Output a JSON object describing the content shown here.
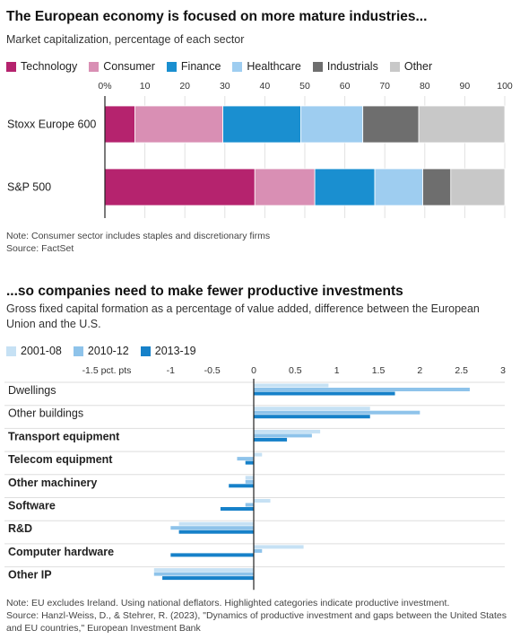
{
  "chart_data": [
    {
      "type": "bar",
      "orientation": "horizontal",
      "stacked": true,
      "title": "The European economy is focused on more mature industries...",
      "subtitle": "Market capitalization, percentage of each sector",
      "categories": [
        "Stoxx Europe 600",
        "S&P 500"
      ],
      "series": [
        {
          "name": "Technology",
          "color": "#b5236e",
          "values": [
            7.5,
            37.5
          ]
        },
        {
          "name": "Consumer",
          "color": "#d98fb4",
          "values": [
            22,
            15
          ]
        },
        {
          "name": "Finance",
          "color": "#1a8fd0",
          "values": [
            19.5,
            15
          ]
        },
        {
          "name": "Healthcare",
          "color": "#9ecdf0",
          "values": [
            15.5,
            12
          ]
        },
        {
          "name": "Industrials",
          "color": "#6e6e6e",
          "values": [
            14,
            7
          ]
        },
        {
          "name": "Other",
          "color": "#c8c8c8",
          "values": [
            21.5,
            13.5
          ]
        }
      ],
      "xlim": [
        0,
        100
      ],
      "ticks": [
        0,
        10,
        20,
        30,
        40,
        50,
        60,
        70,
        80,
        90,
        100
      ],
      "tick_labels": [
        "0%",
        "10",
        "20",
        "30",
        "40",
        "50",
        "60",
        "70",
        "80",
        "90",
        "100"
      ],
      "legend_position": "top-left",
      "note": "Note: Consumer sector includes staples and discretionary firms",
      "source": "Source: FactSet"
    },
    {
      "type": "bar",
      "orientation": "horizontal",
      "grouped": true,
      "title": "...so companies need to make fewer productive investments",
      "subtitle": "Gross fixed capital formation as a percentage of value added, difference between the European Union and the U.S.",
      "categories": [
        "Dwellings",
        "Other buildings",
        "Transport equipment",
        "Telecom equipment",
        "Other machinery",
        "Software",
        "R&D",
        "Computer hardware",
        "Other IP"
      ],
      "highlighted": [
        false,
        false,
        true,
        true,
        true,
        true,
        true,
        true,
        true
      ],
      "series": [
        {
          "name": "2001-08",
          "color": "#c6e1f4",
          "values": [
            0.9,
            1.4,
            0.8,
            0.1,
            -0.1,
            0.2,
            -0.9,
            0.6,
            -1.2
          ]
        },
        {
          "name": "2010-12",
          "color": "#8ec3ea",
          "values": [
            2.6,
            2.0,
            0.7,
            -0.2,
            -0.1,
            -0.1,
            -1.0,
            0.1,
            -1.2
          ]
        },
        {
          "name": "2013-19",
          "color": "#1681c9",
          "values": [
            1.7,
            1.4,
            0.4,
            -0.1,
            -0.3,
            -0.4,
            -0.9,
            -1.0,
            -1.1
          ]
        }
      ],
      "xlim": [
        -1.5,
        3
      ],
      "ticks": [
        -1.5,
        -1,
        -0.5,
        0,
        0.5,
        1,
        1.5,
        2,
        2.5,
        3
      ],
      "tick_labels": [
        "-1.5 pct. pts",
        "-1",
        "-0.5",
        "0",
        "0.5",
        "1",
        "1.5",
        "2",
        "2.5",
        "3"
      ],
      "legend_position": "top-left",
      "note": "Note: EU excludes Ireland. Using national deflators. Highlighted categories indicate productive investment.",
      "source": "Source: Hanzl-Weiss, D., & Stehrer, R. (2023), \"Dynamics of productive investment and gaps between the United States and EU countries,\" European Investment Bank"
    }
  ]
}
